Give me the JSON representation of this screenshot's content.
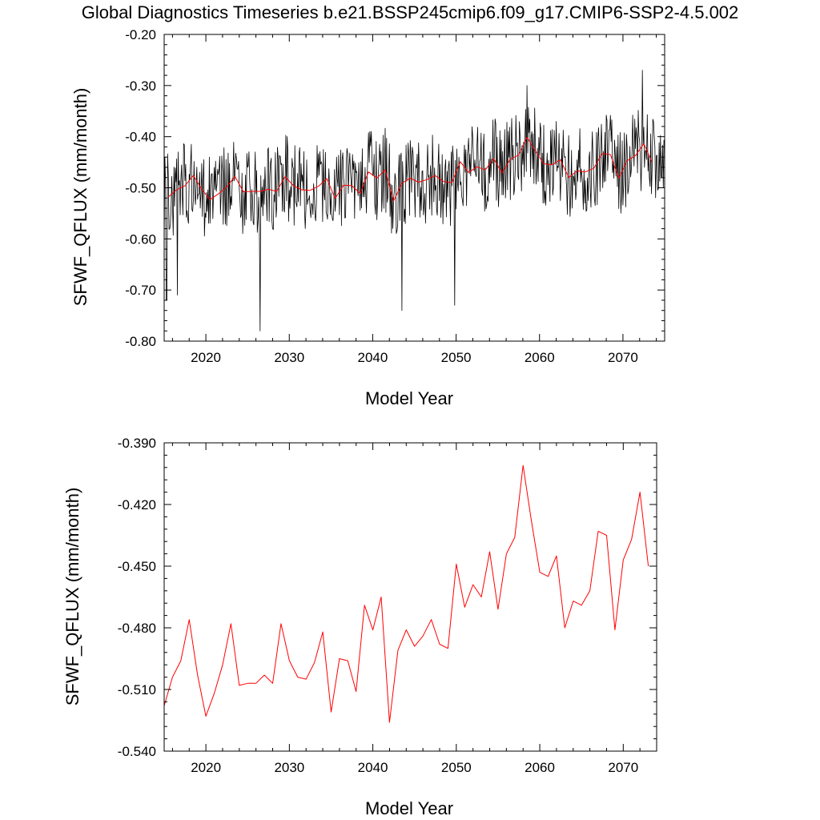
{
  "title": "Global Diagnostics Timeseries b.e21.BSSP245cmip6.f09_g17.CMIP6-SSP2-4.5.002",
  "colors": {
    "monthly": "#000000",
    "annual": "#ff0000",
    "axis": "#000000"
  },
  "chart_data": [
    {
      "type": "line",
      "panel": "top",
      "xlabel": "Model Year",
      "ylabel": "SFWF_QFLUX (mm/month)",
      "xlim": [
        2015,
        2075
      ],
      "ylim": [
        -0.8,
        -0.2
      ],
      "xticks": [
        2020,
        2030,
        2040,
        2050,
        2060,
        2070
      ],
      "yticks": [
        -0.8,
        -0.7,
        -0.6,
        -0.5,
        -0.4,
        -0.3,
        -0.2
      ],
      "ytick_labels": [
        "-0.80",
        "-0.70",
        "-0.60",
        "-0.50",
        "-0.40",
        "-0.30",
        "-0.20"
      ],
      "grid": false,
      "series": [
        {
          "kind": "monthly",
          "color": "#000000",
          "sampling": "monthly, 2015.0 to 2074.9 (reproduced approximately)",
          "annual_mean_ref": "annual",
          "amplitude": 0.085,
          "extremes": [
            {
              "x": 2015.3,
              "y": -0.72
            },
            {
              "x": 2016.6,
              "y": -0.71
            },
            {
              "x": 2026.5,
              "y": -0.78
            },
            {
              "x": 2043.5,
              "y": -0.74
            },
            {
              "x": 2049.8,
              "y": -0.73
            },
            {
              "x": 2058.5,
              "y": -0.3
            },
            {
              "x": 2072.3,
              "y": -0.27
            }
          ]
        },
        {
          "kind": "annual",
          "color": "#ff0000",
          "x": [
            2015.5,
            2016.5,
            2017.5,
            2018.5,
            2019.5,
            2020.5,
            2021.5,
            2022.5,
            2023.5,
            2024.5,
            2025.5,
            2026.5,
            2027.5,
            2028.5,
            2029.5,
            2030.5,
            2031.5,
            2032.5,
            2033.5,
            2034.5,
            2035.5,
            2036.5,
            2037.5,
            2038.5,
            2039.5,
            2040.5,
            2041.5,
            2042.5,
            2043.5,
            2044.5,
            2045.5,
            2046.5,
            2047.5,
            2048.5,
            2049.5,
            2050.5,
            2051.5,
            2052.5,
            2053.5,
            2054.5,
            2055.5,
            2056.5,
            2057.5,
            2058.5,
            2059.5,
            2060.5,
            2061.5,
            2062.5,
            2063.5,
            2064.5,
            2065.5,
            2066.5,
            2067.5,
            2068.5,
            2069.5,
            2070.5,
            2071.5,
            2072.5,
            2073.5
          ],
          "y": [
            -0.518,
            -0.504,
            -0.496,
            -0.476,
            -0.503,
            -0.523,
            -0.512,
            -0.498,
            -0.478,
            -0.508,
            -0.507,
            -0.507,
            -0.503,
            -0.507,
            -0.478,
            -0.496,
            -0.504,
            -0.505,
            -0.497,
            -0.482,
            -0.521,
            -0.495,
            -0.496,
            -0.511,
            -0.469,
            -0.481,
            -0.465,
            -0.526,
            -0.491,
            -0.481,
            -0.489,
            -0.484,
            -0.476,
            -0.488,
            -0.49,
            -0.449,
            -0.47,
            -0.459,
            -0.465,
            -0.443,
            -0.471,
            -0.444,
            -0.436,
            -0.401,
            -0.428,
            -0.453,
            -0.455,
            -0.445,
            -0.48,
            -0.467,
            -0.469,
            -0.462,
            -0.433,
            -0.435,
            -0.481,
            -0.447,
            -0.437,
            -0.414,
            -0.45
          ]
        }
      ]
    },
    {
      "type": "line",
      "panel": "bottom",
      "xlabel": "Model Year",
      "ylabel": "SFWF_QFLUX (mm/month)",
      "xlim": [
        2015,
        2074
      ],
      "ylim": [
        -0.54,
        -0.39
      ],
      "xticks": [
        2020,
        2030,
        2040,
        2050,
        2060,
        2070
      ],
      "yticks": [
        -0.54,
        -0.51,
        -0.48,
        -0.45,
        -0.42,
        -0.39
      ],
      "ytick_labels": [
        "-0.540",
        "-0.510",
        "-0.480",
        "-0.450",
        "-0.420",
        "-0.390"
      ],
      "grid": false,
      "series": [
        {
          "kind": "annual",
          "color": "#ff0000",
          "x": [
            2015.0,
            2016.0,
            2017.0,
            2018.0,
            2019.0,
            2020.0,
            2021.0,
            2022.0,
            2023.0,
            2024.0,
            2025.0,
            2026.0,
            2027.0,
            2028.0,
            2029.0,
            2030.0,
            2031.0,
            2032.0,
            2033.0,
            2034.0,
            2035.0,
            2036.0,
            2037.0,
            2038.0,
            2039.0,
            2040.0,
            2041.0,
            2042.0,
            2043.0,
            2044.0,
            2045.0,
            2046.0,
            2047.0,
            2048.0,
            2049.0,
            2050.0,
            2051.0,
            2052.0,
            2053.0,
            2054.0,
            2055.0,
            2056.0,
            2057.0,
            2058.0,
            2059.0,
            2060.0,
            2061.0,
            2062.0,
            2063.0,
            2064.0,
            2065.0,
            2066.0,
            2067.0,
            2068.0,
            2069.0,
            2070.0,
            2071.0,
            2072.0,
            2073.0
          ],
          "y": [
            -0.518,
            -0.504,
            -0.496,
            -0.476,
            -0.503,
            -0.523,
            -0.512,
            -0.498,
            -0.478,
            -0.508,
            -0.507,
            -0.507,
            -0.503,
            -0.507,
            -0.478,
            -0.496,
            -0.504,
            -0.505,
            -0.497,
            -0.482,
            -0.521,
            -0.495,
            -0.496,
            -0.511,
            -0.469,
            -0.481,
            -0.465,
            -0.526,
            -0.491,
            -0.481,
            -0.489,
            -0.484,
            -0.476,
            -0.488,
            -0.49,
            -0.449,
            -0.47,
            -0.459,
            -0.465,
            -0.443,
            -0.471,
            -0.444,
            -0.436,
            -0.401,
            -0.428,
            -0.453,
            -0.455,
            -0.445,
            -0.48,
            -0.467,
            -0.469,
            -0.462,
            -0.433,
            -0.435,
            -0.481,
            -0.447,
            -0.437,
            -0.414,
            -0.45
          ]
        }
      ]
    }
  ]
}
